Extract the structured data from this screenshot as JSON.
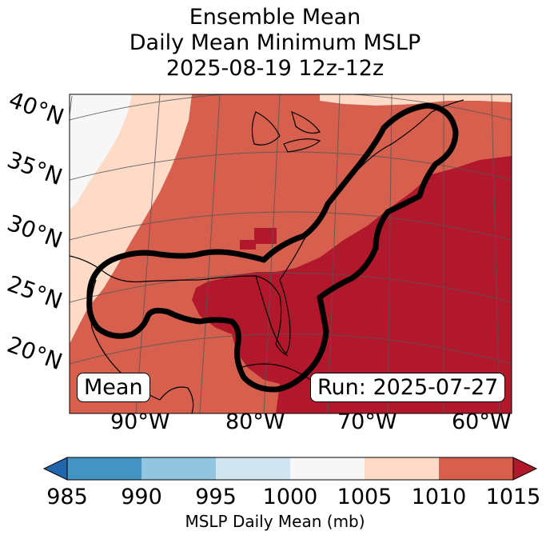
{
  "title": {
    "line1": "Ensemble Mean",
    "line2": "Daily Mean Minimum MSLP",
    "line3": "2025-08-19 12z-12z"
  },
  "map": {
    "lat_labels": [
      "40°N",
      "35°N",
      "30°N",
      "25°N",
      "20°N"
    ],
    "lon_labels": [
      "90°W",
      "80°W",
      "70°W",
      "60°W"
    ],
    "mean_label": "Mean",
    "run_label": "Run: 2025-07-27"
  },
  "colorbar": {
    "ticks": [
      "985",
      "990",
      "995",
      "1000",
      "1005",
      "1010",
      "1015"
    ],
    "colors": {
      "lt985": "#2166ac",
      "b985_990": "#4393c3",
      "b990_995": "#92c5de",
      "b995_1000": "#d1e5f0",
      "b1000_1005": "#f7f7f7",
      "b1005_1010": "#fddbc7",
      "b1010_1015": "#d6604d",
      "gt1015": "#b2182b"
    },
    "label": "MSLP Daily Mean (mb)"
  }
}
